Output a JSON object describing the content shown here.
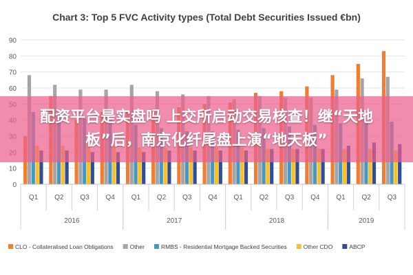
{
  "chart_data": {
    "type": "bar",
    "title": "Chart 3: Top 5 FVC Activity types (Total Debt Securities Issued €bn)",
    "ylim": [
      0,
      90
    ],
    "yticks": [
      0,
      10,
      20,
      30,
      40,
      50,
      60,
      70,
      80,
      90
    ],
    "grid": true,
    "legend_position": "bottom",
    "categories": [
      "Q1",
      "Q2",
      "Q3",
      "Q4",
      "Q1",
      "Q2",
      "Q3",
      "Q4",
      "Q1",
      "Q2",
      "Q3",
      "Q4",
      "Q1",
      "Q2",
      "Q3"
    ],
    "years": [
      {
        "label": "2016",
        "start": 0,
        "end": 3
      },
      {
        "label": "2017",
        "start": 4,
        "end": 7
      },
      {
        "label": "2018",
        "start": 8,
        "end": 11
      },
      {
        "label": "2019",
        "start": 12,
        "end": 14
      }
    ],
    "series": [
      {
        "name": "CLO - Collateralised Loan Obligations",
        "color": "#f07d31",
        "values": [
          30,
          55,
          40,
          45,
          46,
          47,
          48,
          50,
          51,
          57,
          58,
          61,
          68,
          75,
          83
        ]
      },
      {
        "name": "Other",
        "color": "#a5a5a5",
        "values": [
          68,
          62,
          59,
          59,
          62,
          58,
          56,
          55,
          53,
          55,
          54,
          54,
          59,
          66,
          67
        ]
      },
      {
        "name": "RMBS - Residential Mortgage Backed Securities",
        "color": "#4597c4",
        "values": [
          45,
          44,
          41,
          40,
          37,
          35,
          33,
          33,
          34,
          35,
          36,
          37,
          38,
          38,
          39
        ]
      },
      {
        "name": "Other CDO",
        "color": "#fdc024",
        "values": [
          24,
          24,
          24,
          24,
          23,
          23,
          23,
          23,
          23,
          22,
          22,
          22,
          22,
          22,
          21
        ]
      },
      {
        "name": "ABCP",
        "color": "#2f4e96",
        "values": [
          21,
          21,
          20,
          20,
          20,
          21,
          21,
          21,
          21,
          22,
          22,
          22,
          24,
          26,
          25
        ]
      }
    ]
  },
  "overlay": {
    "banner_text": "配资平台是实盘吗 上交所启动交易核查！继“天地板”后，南京化纤尾盘上演“地天板”"
  }
}
